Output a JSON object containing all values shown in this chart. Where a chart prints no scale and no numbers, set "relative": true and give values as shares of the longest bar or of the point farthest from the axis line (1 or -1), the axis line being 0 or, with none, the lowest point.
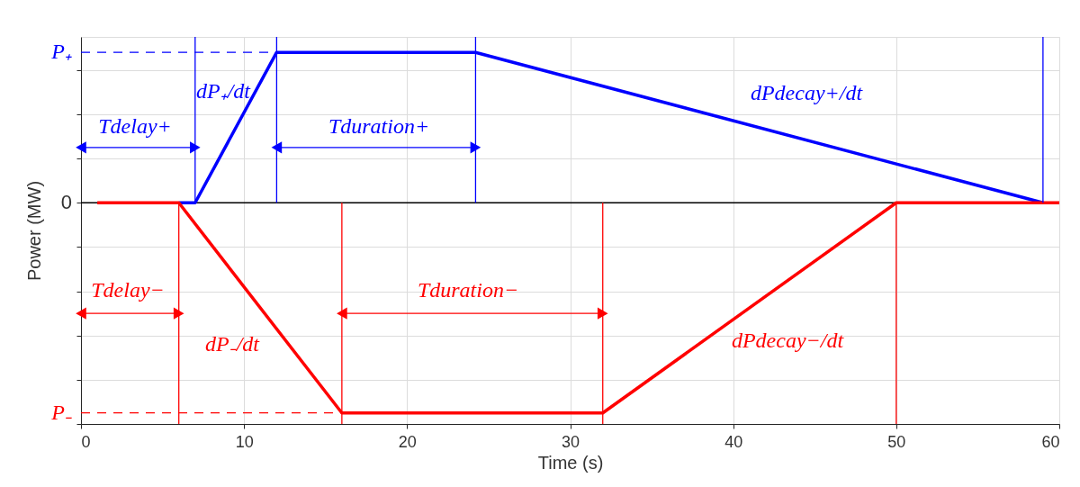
{
  "chart_data": {
    "type": "line",
    "xlabel": "Time (s)",
    "ylabel": "Power (MW)",
    "relative": true,
    "xlim": [
      0,
      60
    ],
    "xticks": [
      0,
      10,
      20,
      30,
      40,
      50,
      60
    ],
    "grid": true,
    "legend": false,
    "marker": "none",
    "line_style": "solid",
    "ref_lines": [
      {
        "axis": "y",
        "value": 0,
        "color": "#000000",
        "label": "0"
      }
    ],
    "series": [
      {
        "color": "#0000ff",
        "x": [
          6,
          7,
          12,
          24.2,
          59
        ],
        "values": [
          0,
          0,
          0.68,
          0.68,
          0
        ]
      },
      {
        "color": "#ff0000",
        "x": [
          1,
          6,
          16,
          32,
          50,
          60
        ],
        "values": [
          0,
          0,
          -0.95,
          -0.95,
          0,
          0
        ]
      },
      {
        "name": "P₊",
        "color": "#0000ff",
        "x": [
          0,
          12
        ],
        "values": [
          0.68,
          0.68
        ],
        "line_style": "dashed"
      },
      {
        "name": "P₋",
        "color": "#ff0000",
        "x": [
          0,
          16
        ],
        "values": [
          -0.95,
          -0.95
        ],
        "line_style": "dashed"
      },
      {
        "color": "#0000ff",
        "x": [
          7,
          7
        ],
        "values": [
          0,
          0.75
        ]
      },
      {
        "color": "#0000ff",
        "x": [
          12,
          12
        ],
        "values": [
          0,
          0.75
        ]
      },
      {
        "color": "#0000ff",
        "x": [
          24.2,
          24.2
        ],
        "values": [
          0,
          0.75
        ]
      },
      {
        "color": "#0000ff",
        "x": [
          59,
          59
        ],
        "values": [
          0,
          0.75
        ]
      },
      {
        "color": "#ff0000",
        "x": [
          6,
          6
        ],
        "values": [
          0,
          -1
        ]
      },
      {
        "color": "#ff0000",
        "x": [
          16,
          16
        ],
        "values": [
          0,
          -1
        ]
      },
      {
        "color": "#ff0000",
        "x": [
          32,
          32
        ],
        "values": [
          0,
          -1
        ]
      },
      {
        "color": "#ff0000",
        "x": [
          50,
          50
        ],
        "values": [
          0,
          -1
        ]
      },
      {
        "color": "#0000ff",
        "x": [
          0,
          7
        ],
        "values": [
          0.25,
          0.25
        ],
        "marker": "triangle"
      },
      {
        "color": "#0000ff",
        "x": [
          12,
          24.2
        ],
        "values": [
          0.25,
          0.25
        ],
        "marker": "triangle"
      },
      {
        "color": "#ff0000",
        "x": [
          0,
          6
        ],
        "values": [
          -0.5,
          -0.5
        ],
        "marker": "triangle"
      },
      {
        "color": "#ff0000",
        "x": [
          16,
          32
        ],
        "values": [
          -0.5,
          -0.5
        ],
        "marker": "triangle"
      }
    ],
    "annotations": [
      "Tdelay+",
      "dP₊/dt",
      "Tduration+",
      "dPdecay+/dt",
      "Tdelay−",
      "dP₋/dt",
      "Tduration−",
      "dPdecay−/dt"
    ]
  }
}
